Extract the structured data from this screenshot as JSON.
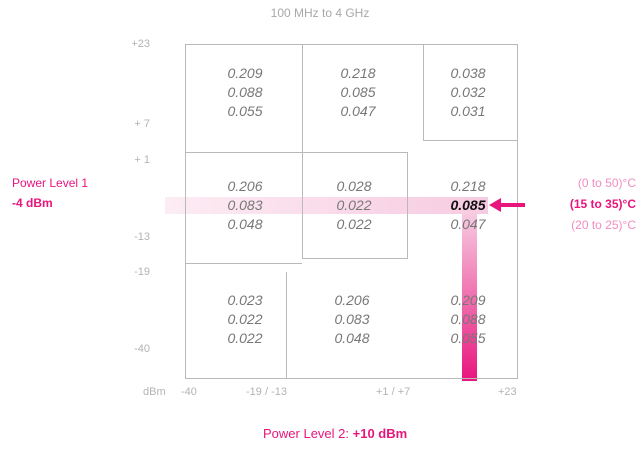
{
  "title": "100 MHz to 4 GHz",
  "y_ticks": [
    "+23",
    "+ 7",
    "+ 1",
    "-13",
    "-19",
    "-40"
  ],
  "x_ticks": [
    "dBm",
    "-40",
    "-19 / -13",
    "+1 / +7",
    "+23"
  ],
  "power_level_1": {
    "label": "Power Level 1",
    "value": "-4 dBm"
  },
  "power_level_2": {
    "label": "Power Level 2:",
    "value": "+10 dBm"
  },
  "temperature_ranges": [
    "(0  to 50)°C",
    "(15 to 35)°C",
    "(20 to 25)°C"
  ],
  "cells": {
    "r1c1": [
      "0.209",
      "0.088",
      "0.055"
    ],
    "r1c2": [
      "0.218",
      "0.085",
      "0.047"
    ],
    "r1c3": [
      "0.038",
      "0.032",
      "0.031"
    ],
    "r2c1": [
      "0.206",
      "0.083",
      "0.048"
    ],
    "r2c2": [
      "0.028",
      "0.022",
      "0.022"
    ],
    "r2c3": [
      "0.218",
      "0.085",
      "0.047"
    ],
    "r3c1": [
      "0.023",
      "0.022",
      "0.022"
    ],
    "r3c2": [
      "0.206",
      "0.083",
      "0.048"
    ],
    "r3c3": [
      "0.209",
      "0.088",
      "0.055"
    ]
  },
  "colors": {
    "accent": "#e8157d",
    "accent_light": "#f28cc0",
    "grid": "#b9b9b9",
    "value_text": "#777777"
  }
}
